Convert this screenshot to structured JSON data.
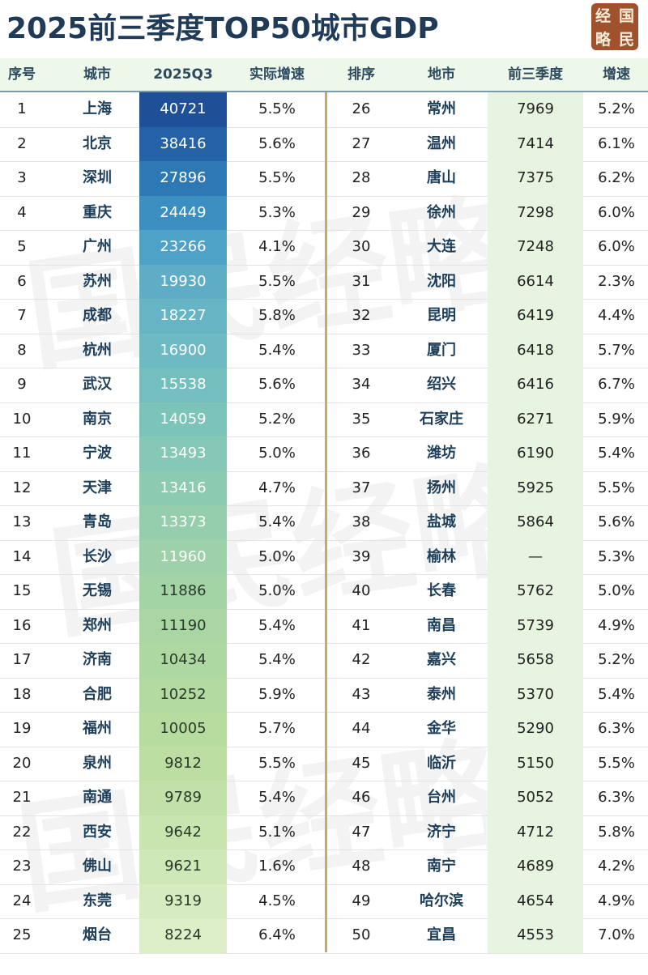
{
  "title": "2025前三季度TOP50城市GDP",
  "seal": [
    "经",
    "国",
    "略",
    "民"
  ],
  "watermark": "国民经略",
  "headers": [
    "序号",
    "城市",
    "2025Q3",
    "实际增速",
    "排序",
    "地市",
    "前三季度",
    "增速"
  ],
  "left_rows": [
    {
      "rank": "1",
      "city": "上海",
      "gdp": "40721",
      "growth": "5.5%"
    },
    {
      "rank": "2",
      "city": "北京",
      "gdp": "38416",
      "growth": "5.6%"
    },
    {
      "rank": "3",
      "city": "深圳",
      "gdp": "27896",
      "growth": "5.5%"
    },
    {
      "rank": "4",
      "city": "重庆",
      "gdp": "24449",
      "growth": "5.3%"
    },
    {
      "rank": "5",
      "city": "广州",
      "gdp": "23266",
      "growth": "4.1%"
    },
    {
      "rank": "6",
      "city": "苏州",
      "gdp": "19930",
      "growth": "5.5%"
    },
    {
      "rank": "7",
      "city": "成都",
      "gdp": "18227",
      "growth": "5.8%"
    },
    {
      "rank": "8",
      "city": "杭州",
      "gdp": "16900",
      "growth": "5.4%"
    },
    {
      "rank": "9",
      "city": "武汉",
      "gdp": "15538",
      "growth": "5.6%"
    },
    {
      "rank": "10",
      "city": "南京",
      "gdp": "14059",
      "growth": "5.2%"
    },
    {
      "rank": "11",
      "city": "宁波",
      "gdp": "13493",
      "growth": "5.0%"
    },
    {
      "rank": "12",
      "city": "天津",
      "gdp": "13416",
      "growth": "4.7%"
    },
    {
      "rank": "13",
      "city": "青岛",
      "gdp": "13373",
      "growth": "5.4%"
    },
    {
      "rank": "14",
      "city": "长沙",
      "gdp": "11960",
      "growth": "5.0%"
    },
    {
      "rank": "15",
      "city": "无锡",
      "gdp": "11886",
      "growth": "5.0%"
    },
    {
      "rank": "16",
      "city": "郑州",
      "gdp": "11190",
      "growth": "5.4%"
    },
    {
      "rank": "17",
      "city": "济南",
      "gdp": "10434",
      "growth": "5.4%"
    },
    {
      "rank": "18",
      "city": "合肥",
      "gdp": "10252",
      "growth": "5.9%"
    },
    {
      "rank": "19",
      "city": "福州",
      "gdp": "10005",
      "growth": "5.7%"
    },
    {
      "rank": "20",
      "city": "泉州",
      "gdp": "9812",
      "growth": "5.5%"
    },
    {
      "rank": "21",
      "city": "南通",
      "gdp": "9789",
      "growth": "5.4%"
    },
    {
      "rank": "22",
      "city": "西安",
      "gdp": "9642",
      "growth": "5.1%"
    },
    {
      "rank": "23",
      "city": "佛山",
      "gdp": "9621",
      "growth": "1.6%"
    },
    {
      "rank": "24",
      "city": "东莞",
      "gdp": "9319",
      "growth": "4.5%"
    },
    {
      "rank": "25",
      "city": "烟台",
      "gdp": "8224",
      "growth": "6.4%"
    }
  ],
  "right_rows": [
    {
      "rank": "26",
      "city": "常州",
      "gdp": "7969",
      "growth": "5.2%"
    },
    {
      "rank": "27",
      "city": "温州",
      "gdp": "7414",
      "growth": "6.1%"
    },
    {
      "rank": "28",
      "city": "唐山",
      "gdp": "7375",
      "growth": "6.2%"
    },
    {
      "rank": "29",
      "city": "徐州",
      "gdp": "7298",
      "growth": "6.0%"
    },
    {
      "rank": "30",
      "city": "大连",
      "gdp": "7248",
      "growth": "6.0%"
    },
    {
      "rank": "31",
      "city": "沈阳",
      "gdp": "6614",
      "growth": "2.3%"
    },
    {
      "rank": "32",
      "city": "昆明",
      "gdp": "6419",
      "growth": "4.4%"
    },
    {
      "rank": "33",
      "city": "厦门",
      "gdp": "6418",
      "growth": "5.7%"
    },
    {
      "rank": "34",
      "city": "绍兴",
      "gdp": "6416",
      "growth": "6.7%"
    },
    {
      "rank": "35",
      "city": "石家庄",
      "gdp": "6271",
      "growth": "5.9%"
    },
    {
      "rank": "36",
      "city": "潍坊",
      "gdp": "6190",
      "growth": "5.4%"
    },
    {
      "rank": "37",
      "city": "扬州",
      "gdp": "5925",
      "growth": "5.5%"
    },
    {
      "rank": "38",
      "city": "盐城",
      "gdp": "5864",
      "growth": "5.6%"
    },
    {
      "rank": "39",
      "city": "榆林",
      "gdp": "—",
      "growth": "5.3%"
    },
    {
      "rank": "40",
      "city": "长春",
      "gdp": "5762",
      "growth": "5.0%"
    },
    {
      "rank": "41",
      "city": "南昌",
      "gdp": "5739",
      "growth": "4.9%"
    },
    {
      "rank": "42",
      "city": "嘉兴",
      "gdp": "5658",
      "growth": "5.2%"
    },
    {
      "rank": "43",
      "city": "泰州",
      "gdp": "5370",
      "growth": "5.4%"
    },
    {
      "rank": "44",
      "city": "金华",
      "gdp": "5290",
      "growth": "6.3%"
    },
    {
      "rank": "45",
      "city": "临沂",
      "gdp": "5150",
      "growth": "5.5%"
    },
    {
      "rank": "46",
      "city": "台州",
      "gdp": "5052",
      "growth": "6.3%"
    },
    {
      "rank": "47",
      "city": "济宁",
      "gdp": "4712",
      "growth": "5.8%"
    },
    {
      "rank": "48",
      "city": "南宁",
      "gdp": "4689",
      "growth": "4.2%"
    },
    {
      "rank": "49",
      "city": "哈尔滨",
      "gdp": "4654",
      "growth": "4.9%"
    },
    {
      "rank": "50",
      "city": "宜昌",
      "gdp": "4553",
      "growth": "7.0%"
    }
  ],
  "left_gdp_colors": [
    "#1f4f97",
    "#2561a6",
    "#2d79b6",
    "#3a8fc0",
    "#4ea1c7",
    "#5eacc6",
    "#66b4c4",
    "#6dbac2",
    "#74bfbe",
    "#7cc4ba",
    "#85c8b6",
    "#8dcbb1",
    "#95ceac",
    "#9cd1a9",
    "#a3d4a6",
    "#a9d6a3",
    "#aed8a1",
    "#b3daa0",
    "#b7dc9f",
    "#bcdea2",
    "#c2e1a8",
    "#c8e4af",
    "#cfe8b7",
    "#d6ecc0",
    "#ddefc9"
  ]
}
